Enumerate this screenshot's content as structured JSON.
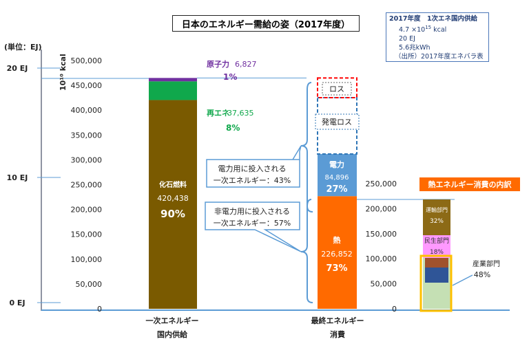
{
  "title": "日本のエネルギー需給の姿（2017年度）",
  "info_box": {
    "line1": "2017年度　1次エネ国内供給",
    "line2_base": "4.7 ×10",
    "line2_exp": "15",
    "line2_unit": " kcal",
    "line3": "20 EJ",
    "line4": "5.6兆kWh",
    "line5": "（出所）2017年度エネバラ表"
  },
  "unit_label": "(単位：EJ)",
  "unit_kcal_label": "10¹⁰ kcal",
  "ej_ticks": [
    "20 EJ",
    "10 EJ",
    "0 EJ"
  ],
  "colors": {
    "fossil": "#7a5a00",
    "renewable": "#10a84c",
    "nuclear": "#7030a0",
    "electricity": "#5b9bd5",
    "heat": "#ff6a00",
    "transport": "#8c6a16",
    "residential": "#ff99ff",
    "industry_light": "#c5e0b4",
    "industry_blue": "#2f5597",
    "industry_brown": "#a0522d",
    "inset_border": "#ffc000",
    "axis_blue": "#5b9bd5",
    "loss_red": "#ff0000",
    "loss_blue": "#2e75b6",
    "inset_title": "#ff6a00"
  },
  "chart_data": [
    {
      "type": "bar",
      "title": "",
      "ylabel": "10¹⁰ kcal",
      "ylim": [
        0,
        500000
      ],
      "y_ticks": [
        "500,000",
        "450,000",
        "400,000",
        "350,000",
        "300,000",
        "250,000",
        "200,000",
        "150,000",
        "100,000",
        "50,000",
        "0"
      ],
      "categories": [
        "一次エネルギー\n国内供給",
        "最終エネルギー\n消費"
      ],
      "category_labels": [
        [
          "一次エネルギー",
          "国内供給"
        ],
        [
          "最終エネルギー",
          "消費"
        ]
      ],
      "primary_supply": [
        {
          "name": "化石燃料",
          "value": 420438,
          "value_label": "420,438",
          "share": "90%"
        },
        {
          "name": "再エネ",
          "value": 37635,
          "value_label": "37,635",
          "share": "8%"
        },
        {
          "name": "原子力",
          "value": 6827,
          "value_label": "6,827",
          "share": "1%"
        }
      ],
      "final_consumption": [
        {
          "name": "熱",
          "value": 226852,
          "value_label": "226,852",
          "share": "73%"
        },
        {
          "name": "電力",
          "value": 84896,
          "value_label": "84,896",
          "share": "27%"
        }
      ],
      "loss_labels": [
        "発電ロス",
        "ロス"
      ],
      "annotations": [
        {
          "line1": "電力用に投入される",
          "line2": "一次エネルギー：43%"
        },
        {
          "line1": "非電力用に投入される",
          "line2": "一次エネルギー：57%"
        }
      ]
    },
    {
      "type": "bar",
      "title": "熱エネルギー消費の内訳",
      "ylim": [
        0,
        250000
      ],
      "y_ticks": [
        "250,000",
        "200,000",
        "150,000",
        "100,000",
        "50,000",
        "0"
      ],
      "segments": [
        {
          "name": "産業部門",
          "share": "48%"
        },
        {
          "name": "民生部門",
          "share": "18%"
        },
        {
          "name": "運輸部門",
          "share": "32%"
        }
      ]
    }
  ]
}
